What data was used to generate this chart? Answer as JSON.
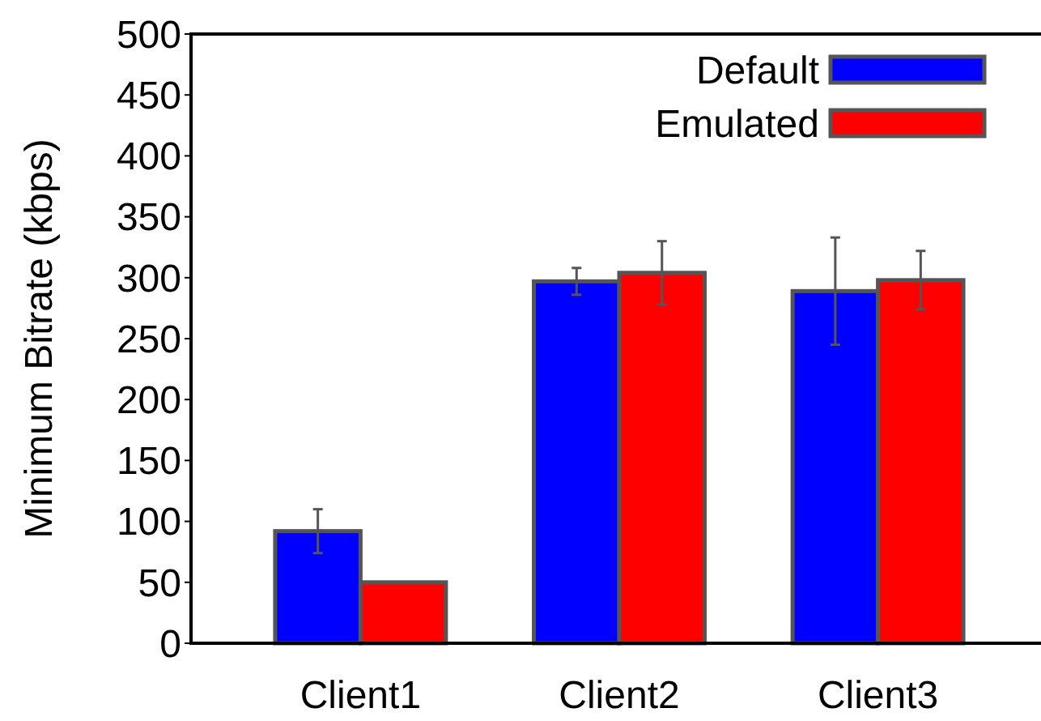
{
  "chart_data": {
    "type": "bar",
    "ylabel": "Minimum Bitrate (kbps)",
    "categories": [
      "Client1",
      "Client2",
      "Client3"
    ],
    "series": [
      {
        "name": "Default",
        "color": "#0000ff",
        "values": [
          92,
          297,
          289
        ],
        "errors": [
          18,
          11,
          44
        ]
      },
      {
        "name": "Emulated",
        "color": "#ff0000",
        "values": [
          50,
          304,
          298
        ],
        "errors": [
          null,
          26,
          24
        ]
      }
    ],
    "ylim": [
      0,
      500
    ],
    "yticks": [
      0,
      50,
      100,
      150,
      200,
      250,
      300,
      350,
      400,
      450,
      500
    ],
    "legend": "top right",
    "grid": false
  }
}
